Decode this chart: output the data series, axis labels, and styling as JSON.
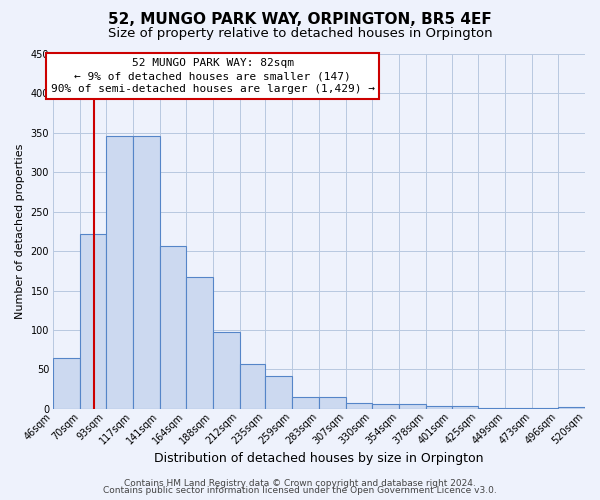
{
  "title": "52, MUNGO PARK WAY, ORPINGTON, BR5 4EF",
  "subtitle": "Size of property relative to detached houses in Orpington",
  "xlabel": "Distribution of detached houses by size in Orpington",
  "ylabel": "Number of detached properties",
  "bin_edges": [
    46,
    70,
    93,
    117,
    141,
    164,
    188,
    212,
    235,
    259,
    283,
    307,
    330,
    354,
    378,
    401,
    425,
    449,
    473,
    496,
    520
  ],
  "bar_heights": [
    65,
    222,
    346,
    346,
    207,
    167,
    97,
    57,
    42,
    15,
    15,
    7,
    6,
    6,
    3,
    3,
    1,
    1,
    1,
    2
  ],
  "bar_color": "#ccd9f0",
  "bar_edgecolor": "#5585c8",
  "bar_linewidth": 0.8,
  "vline_x": 82,
  "vline_color": "#cc0000",
  "ylim": [
    0,
    450
  ],
  "yticks": [
    0,
    50,
    100,
    150,
    200,
    250,
    300,
    350,
    400,
    450
  ],
  "tick_labels": [
    "46sqm",
    "70sqm",
    "93sqm",
    "117sqm",
    "141sqm",
    "164sqm",
    "188sqm",
    "212sqm",
    "235sqm",
    "259sqm",
    "283sqm",
    "307sqm",
    "330sqm",
    "354sqm",
    "378sqm",
    "401sqm",
    "425sqm",
    "449sqm",
    "473sqm",
    "496sqm",
    "520sqm"
  ],
  "annotation_line1": "52 MUNGO PARK WAY: 82sqm",
  "annotation_line2": "← 9% of detached houses are smaller (147)",
  "annotation_line3": "90% of semi-detached houses are larger (1,429) →",
  "annotation_box_facecolor": "#ffffff",
  "annotation_box_edgecolor": "#cc0000",
  "footer_line1": "Contains HM Land Registry data © Crown copyright and database right 2024.",
  "footer_line2": "Contains public sector information licensed under the Open Government Licence v3.0.",
  "background_color": "#eef2fc",
  "grid_color": "#b8c8e0",
  "title_fontsize": 11,
  "subtitle_fontsize": 9.5,
  "xlabel_fontsize": 9,
  "ylabel_fontsize": 8,
  "tick_fontsize": 7,
  "annotation_fontsize": 8,
  "footer_fontsize": 6.5
}
